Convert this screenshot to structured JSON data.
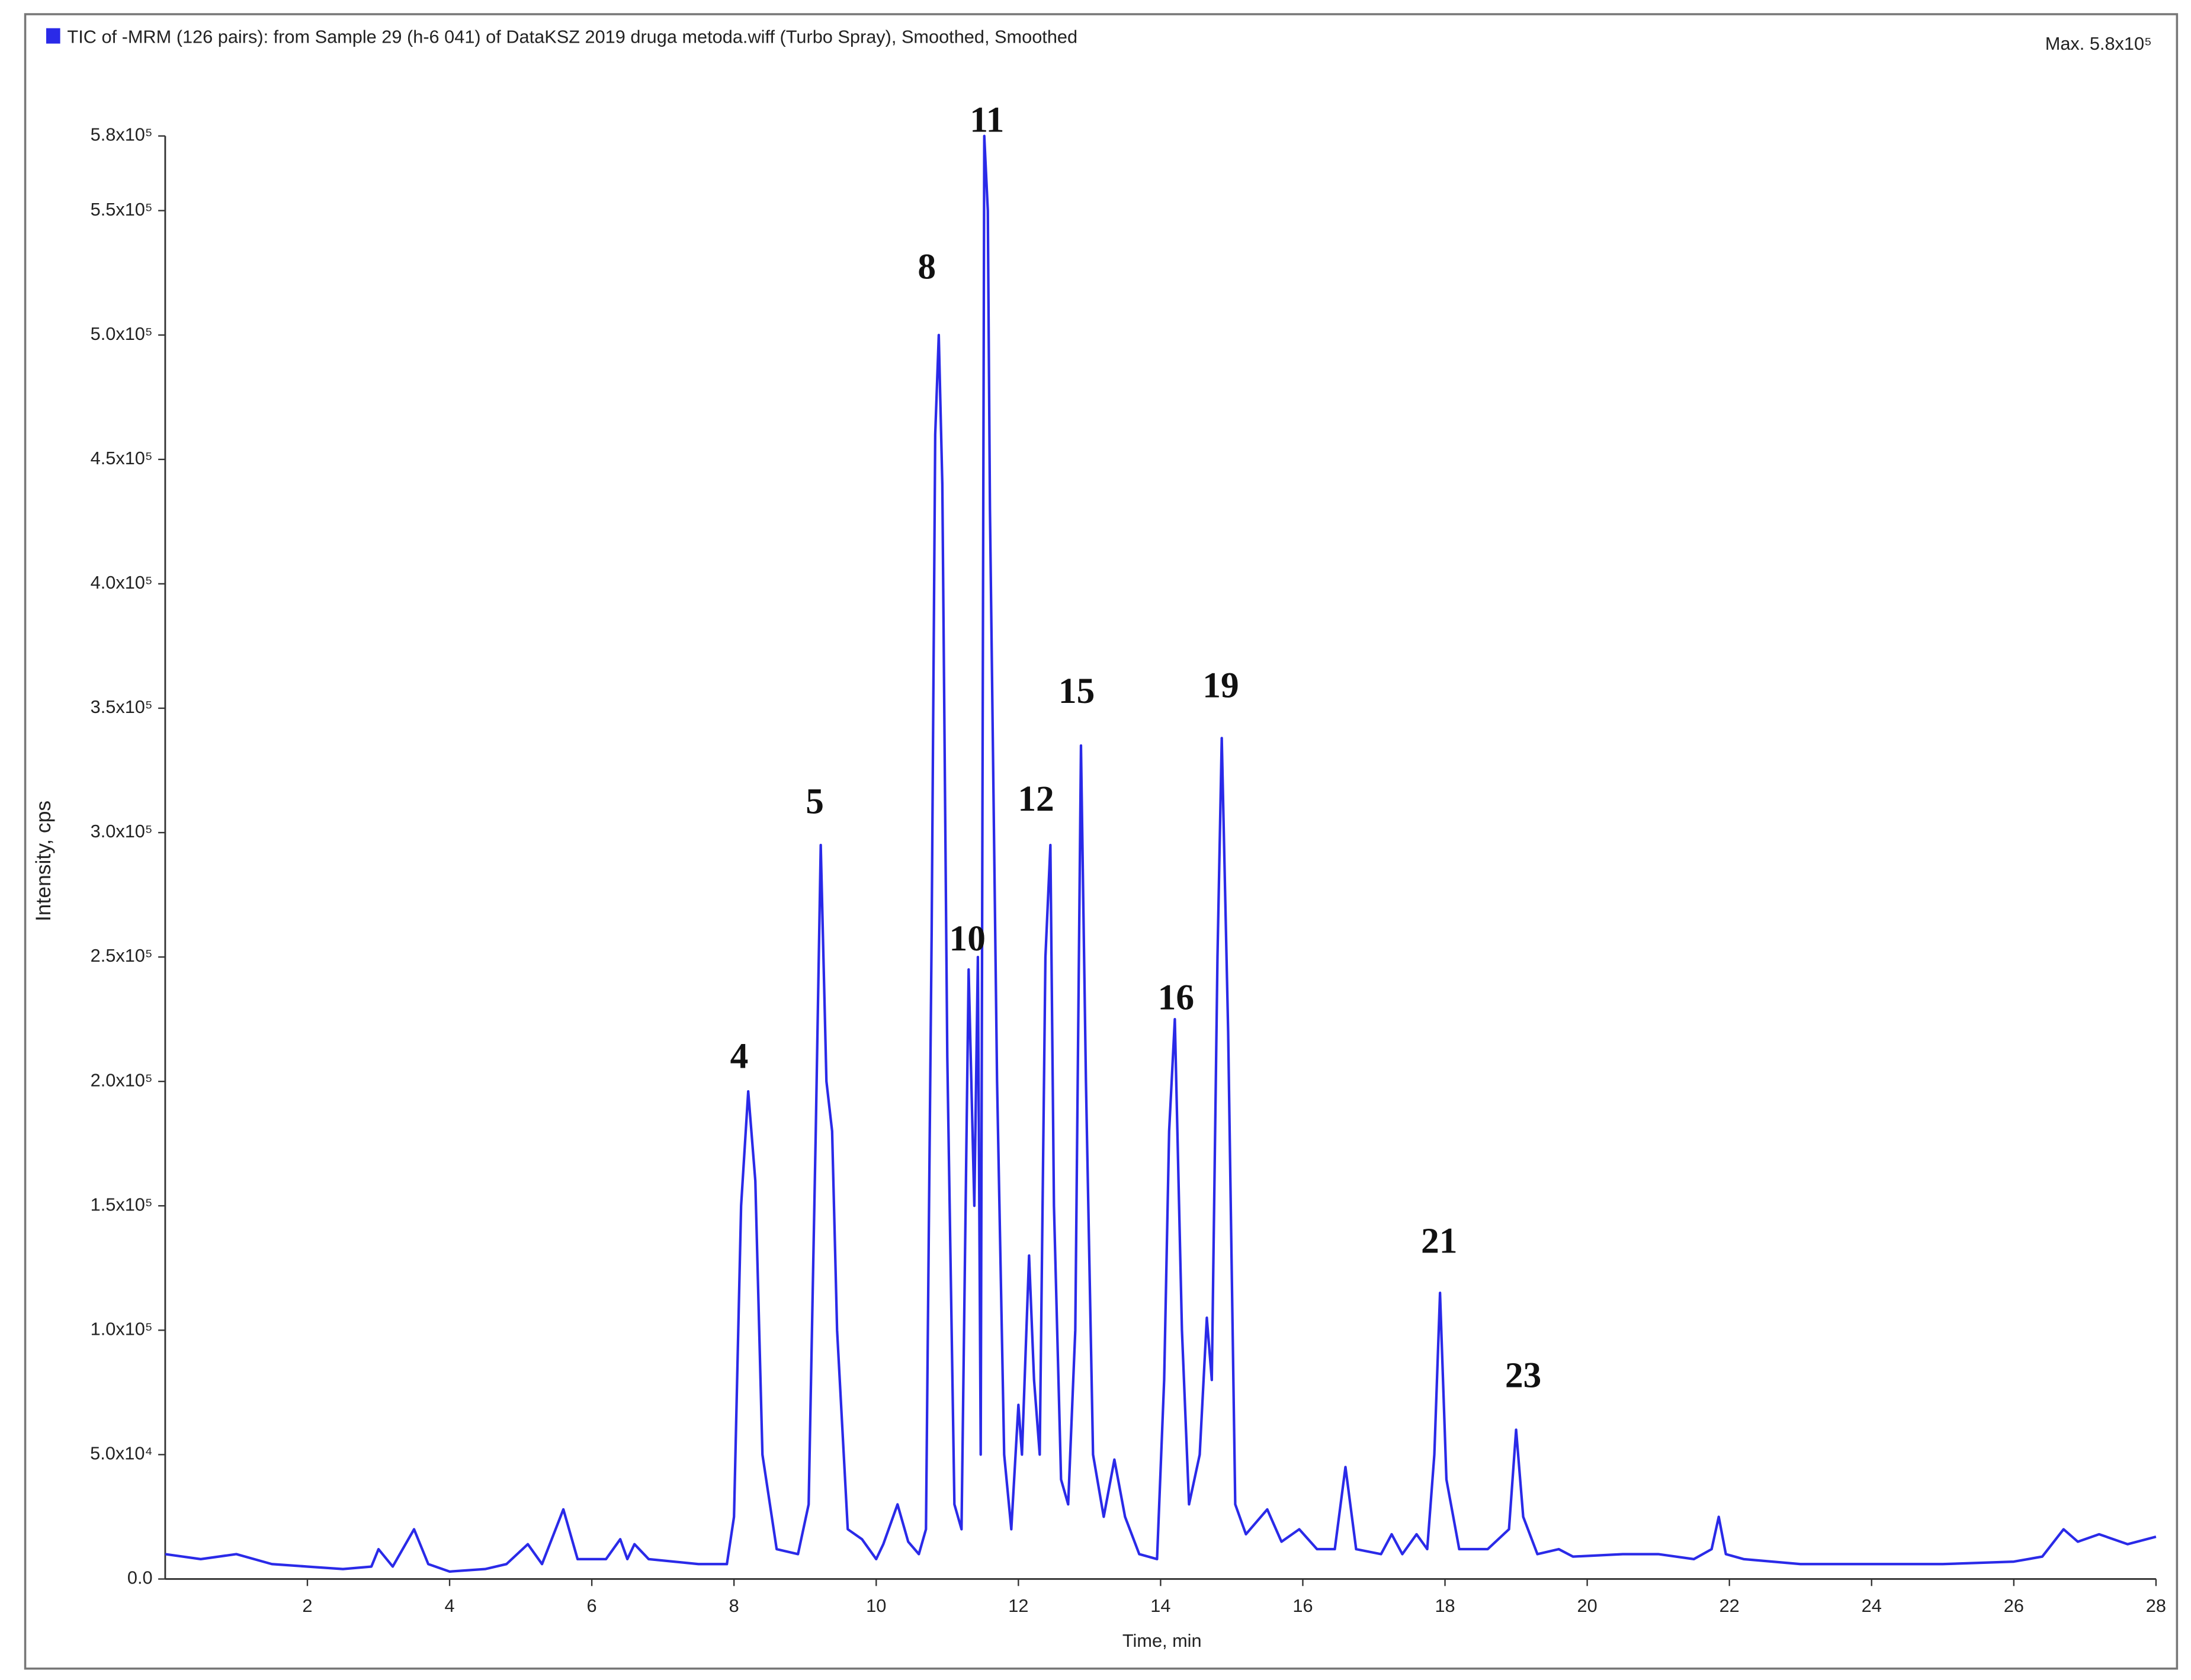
{
  "chart_data": {
    "type": "line",
    "max_label": "Max. 5.8x10⁵",
    "xlabel": "Time, min",
    "ylabel": "Intensity, cps",
    "xlim": [
      0,
      28
    ],
    "xticks": [
      2,
      4,
      6,
      8,
      10,
      12,
      14,
      16,
      18,
      20,
      22,
      24,
      26,
      28
    ],
    "ylim": [
      0,
      580000
    ],
    "yticks": [
      {
        "value": 0,
        "label": "0.0"
      },
      {
        "value": 50000,
        "label": "5.0x10⁴"
      },
      {
        "value": 100000,
        "label": "1.0x10⁵"
      },
      {
        "value": 150000,
        "label": "1.5x10⁵"
      },
      {
        "value": 200000,
        "label": "2.0x10⁵"
      },
      {
        "value": 250000,
        "label": "2.5x10⁵"
      },
      {
        "value": 300000,
        "label": "3.0x10⁵"
      },
      {
        "value": 350000,
        "label": "3.5x10⁵"
      },
      {
        "value": 400000,
        "label": "4.0x10⁵"
      },
      {
        "value": 450000,
        "label": "4.5x10⁵"
      },
      {
        "value": 500000,
        "label": "5.0x10⁵"
      },
      {
        "value": 550000,
        "label": "5.5x10⁵"
      },
      {
        "value": 580000,
        "label": "5.8x10⁵"
      }
    ],
    "annotations": [
      "4",
      "5",
      "8",
      "10",
      "11",
      "12",
      "15",
      "16",
      "19",
      "21",
      "23"
    ],
    "x": [
      0,
      0.5,
      1,
      1.5,
      2,
      2.5,
      2.9,
      3.0,
      3.2,
      3.5,
      3.7,
      4,
      4.5,
      4.8,
      5.1,
      5.3,
      5.6,
      5.8,
      6.2,
      6.4,
      6.5,
      6.6,
      6.8,
      7.5,
      7.9,
      8.0,
      8.1,
      8.2,
      8.3,
      8.4,
      8.6,
      8.9,
      9.05,
      9.15,
      9.22,
      9.3,
      9.38,
      9.45,
      9.6,
      9.8,
      10.0,
      10.1,
      10.3,
      10.45,
      10.6,
      10.7,
      10.78,
      10.83,
      10.88,
      10.93,
      11.0,
      11.1,
      11.2,
      11.3,
      11.38,
      11.43,
      11.47,
      11.52,
      11.57,
      11.6,
      11.7,
      11.8,
      11.9,
      12.0,
      12.05,
      12.15,
      12.22,
      12.3,
      12.38,
      12.45,
      12.5,
      12.6,
      12.7,
      12.8,
      12.88,
      12.95,
      13.05,
      13.2,
      13.35,
      13.5,
      13.7,
      13.95,
      14.05,
      14.12,
      14.2,
      14.3,
      14.4,
      14.55,
      14.65,
      14.72,
      14.8,
      14.86,
      14.95,
      15.05,
      15.2,
      15.5,
      15.7,
      15.95,
      16.2,
      16.45,
      16.6,
      16.75,
      17.1,
      17.25,
      17.4,
      17.6,
      17.75,
      17.85,
      17.93,
      18.02,
      18.2,
      18.6,
      18.9,
      19.0,
      19.1,
      19.3,
      19.6,
      19.8,
      20.5,
      21.0,
      21.5,
      21.75,
      21.85,
      21.95,
      22.2,
      23,
      24,
      25,
      26,
      26.4,
      26.7,
      26.9,
      27.2,
      27.6,
      28
    ],
    "series": [
      {
        "name": "TIC of -MRM (126 pairs): from Sample 29 (h-6  041) of DataKSZ 2019 druga metoda.wiff (Turbo Spray), Smoothed, Smoothed",
        "color": "#2a2ae8",
        "values": [
          10000,
          8000,
          10000,
          6000,
          5000,
          4000,
          5000,
          12000,
          5000,
          20000,
          6000,
          3000,
          4000,
          6000,
          14000,
          6000,
          28000,
          8000,
          8000,
          16000,
          8000,
          14000,
          8000,
          6000,
          6000,
          25000,
          150000,
          196000,
          160000,
          50000,
          12000,
          10000,
          30000,
          180000,
          295000,
          200000,
          180000,
          100000,
          20000,
          16000,
          8000,
          14000,
          30000,
          15000,
          10000,
          20000,
          260000,
          460000,
          500000,
          440000,
          210000,
          30000,
          20000,
          245000,
          150000,
          250000,
          50000,
          580000,
          550000,
          430000,
          200000,
          50000,
          20000,
          70000,
          50000,
          130000,
          80000,
          50000,
          250000,
          295000,
          150000,
          40000,
          30000,
          100000,
          335000,
          200000,
          50000,
          25000,
          48000,
          25000,
          10000,
          8000,
          80000,
          180000,
          225000,
          100000,
          30000,
          50000,
          105000,
          80000,
          250000,
          338000,
          220000,
          30000,
          18000,
          28000,
          15000,
          20000,
          12000,
          12000,
          45000,
          12000,
          10000,
          18000,
          10000,
          18000,
          12000,
          50000,
          115000,
          40000,
          12000,
          12000,
          20000,
          60000,
          25000,
          10000,
          12000,
          9000,
          10000,
          10000,
          8000,
          12000,
          25000,
          10000,
          8000,
          6000,
          6000,
          6000,
          7000,
          9000,
          20000,
          15000,
          18000,
          14000,
          17000
        ]
      }
    ]
  }
}
